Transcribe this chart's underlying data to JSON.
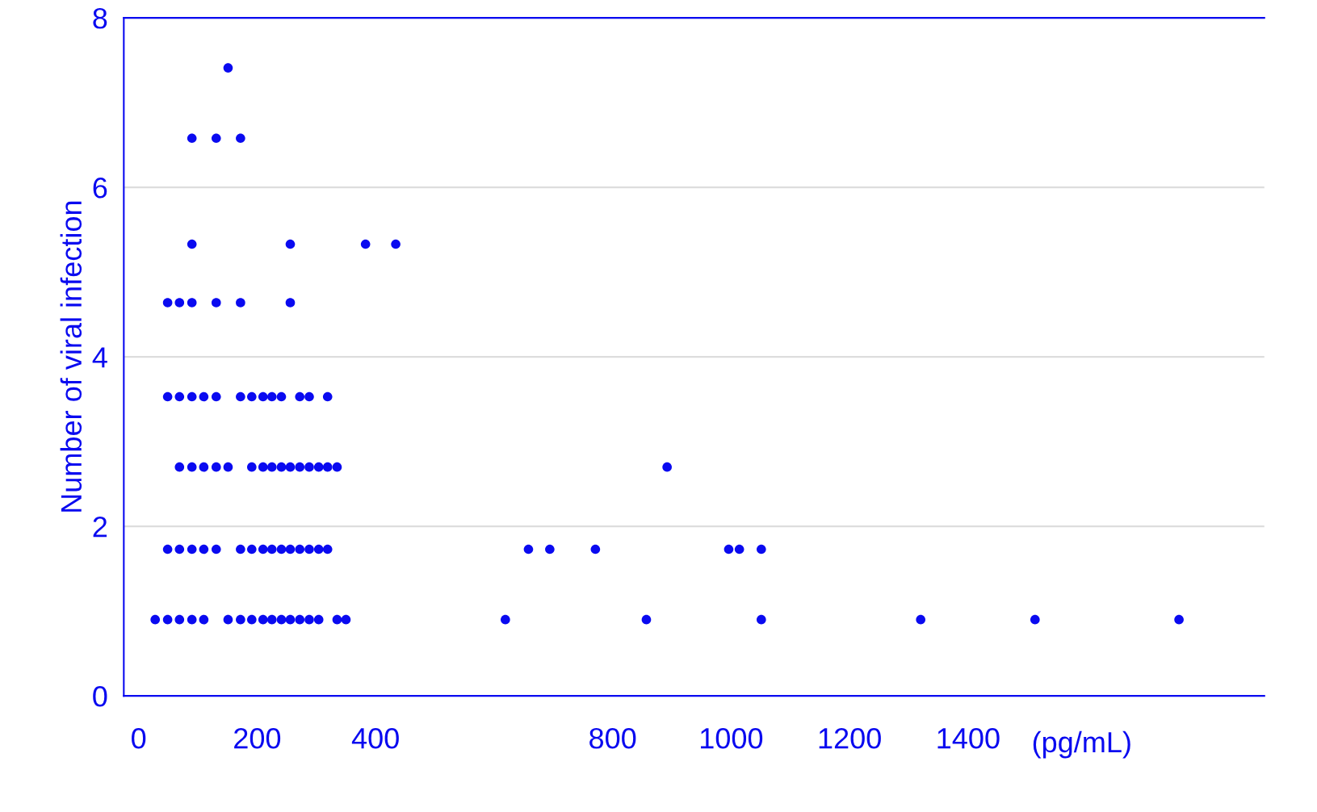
{
  "chart_data": {
    "type": "scatter",
    "xlabel": "(pg/mL)",
    "ylabel": "Number of viral infection",
    "x": [
      28,
      49,
      69,
      90,
      110,
      151,
      172,
      191,
      210,
      225,
      241,
      256,
      272,
      288,
      304,
      335,
      350,
      619,
      857,
      1051,
      1320,
      1513,
      1756,
      49,
      69,
      90,
      110,
      131,
      172,
      191,
      210,
      225,
      241,
      256,
      272,
      288,
      304,
      319,
      658,
      694,
      771,
      996,
      1014,
      1051,
      69,
      90,
      110,
      131,
      151,
      191,
      210,
      225,
      241,
      256,
      272,
      288,
      304,
      319,
      335,
      892,
      49,
      69,
      90,
      110,
      131,
      172,
      191,
      210,
      225,
      241,
      272,
      288,
      319,
      49,
      69,
      90,
      131,
      172,
      256,
      90,
      256,
      383,
      434,
      90,
      131,
      172,
      151
    ],
    "series": [
      {
        "color": "#0a0af0",
        "values": [
          0.9,
          0.9,
          0.9,
          0.9,
          0.9,
          0.9,
          0.9,
          0.9,
          0.9,
          0.9,
          0.9,
          0.9,
          0.9,
          0.9,
          0.9,
          0.9,
          0.9,
          0.9,
          0.9,
          0.9,
          0.9,
          0.9,
          0.9,
          1.73,
          1.73,
          1.73,
          1.73,
          1.73,
          1.73,
          1.73,
          1.73,
          1.73,
          1.73,
          1.73,
          1.73,
          1.73,
          1.73,
          1.73,
          1.73,
          1.73,
          1.73,
          1.73,
          1.73,
          1.73,
          2.7,
          2.7,
          2.7,
          2.7,
          2.7,
          2.7,
          2.7,
          2.7,
          2.7,
          2.7,
          2.7,
          2.7,
          2.7,
          2.7,
          2.7,
          2.7,
          3.53,
          3.53,
          3.53,
          3.53,
          3.53,
          3.53,
          3.53,
          3.53,
          3.53,
          3.53,
          3.53,
          3.53,
          3.53,
          4.64,
          4.64,
          4.64,
          4.64,
          4.64,
          4.64,
          5.33,
          5.33,
          5.33,
          5.33,
          6.58,
          6.58,
          6.58,
          7.41
        ]
      }
    ],
    "xlim": [
      -25,
      1900
    ],
    "xticks": [
      0,
      200,
      400,
      800,
      1000,
      1200,
      1400
    ],
    "ylim": [
      0,
      8
    ],
    "yticks": [
      0,
      2,
      4,
      6,
      8
    ],
    "grid": "y",
    "legend": false,
    "marker": "circle"
  }
}
